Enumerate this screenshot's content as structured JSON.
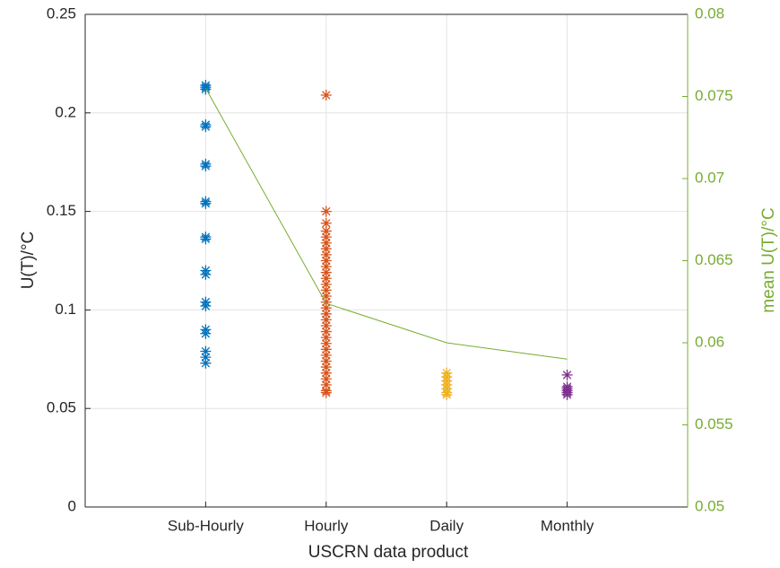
{
  "chart_data": {
    "type": "scatter",
    "xlabel": "USCRN data product",
    "ylabel": "U(T)/°C",
    "y2label": "mean U(T)/°C",
    "xlim": [
      0,
      5
    ],
    "xticks": [
      {
        "value": 1,
        "label": "Sub-Hourly"
      },
      {
        "value": 2,
        "label": "Hourly"
      },
      {
        "value": 3,
        "label": "Daily"
      },
      {
        "value": 4,
        "label": "Monthly"
      }
    ],
    "ylim": [
      0,
      0.25
    ],
    "yticks": [
      0,
      0.05,
      0.1,
      0.15,
      0.2,
      0.25
    ],
    "y2lim": [
      0.05,
      0.08
    ],
    "y2ticks": [
      0.05,
      0.055,
      0.06,
      0.065,
      0.07,
      0.075,
      0.08
    ],
    "y2color": "#77ac30",
    "grid": true,
    "series": [
      {
        "marker": "*",
        "color": "#0072bd",
        "x": [
          1,
          1,
          1,
          1,
          1,
          1,
          1,
          1,
          1,
          1,
          1,
          1,
          1,
          1,
          1,
          1,
          1,
          1,
          1,
          1
        ],
        "y": [
          0.213,
          0.212,
          0.214,
          0.193,
          0.194,
          0.174,
          0.173,
          0.155,
          0.154,
          0.136,
          0.137,
          0.12,
          0.118,
          0.104,
          0.102,
          0.09,
          0.088,
          0.079,
          0.076,
          0.073
        ]
      },
      {
        "marker": "*",
        "color": "#d95319",
        "x": [
          2,
          2,
          2,
          2,
          2,
          2,
          2,
          2,
          2,
          2,
          2,
          2,
          2,
          2,
          2,
          2,
          2,
          2,
          2,
          2,
          2,
          2,
          2,
          2,
          2,
          2,
          2,
          2,
          2,
          2,
          2,
          2
        ],
        "y": [
          0.209,
          0.15,
          0.144,
          0.14,
          0.137,
          0.134,
          0.131,
          0.128,
          0.125,
          0.122,
          0.119,
          0.116,
          0.113,
          0.11,
          0.107,
          0.104,
          0.101,
          0.098,
          0.095,
          0.092,
          0.089,
          0.086,
          0.083,
          0.08,
          0.077,
          0.074,
          0.071,
          0.068,
          0.065,
          0.062,
          0.059,
          0.058
        ]
      },
      {
        "marker": "*",
        "color": "#edb120",
        "x": [
          3,
          3,
          3,
          3,
          3,
          3,
          3
        ],
        "y": [
          0.068,
          0.066,
          0.064,
          0.062,
          0.06,
          0.058,
          0.057
        ]
      },
      {
        "marker": "*",
        "color": "#7e2f8e",
        "x": [
          4,
          4,
          4,
          4,
          4,
          4
        ],
        "y": [
          0.067,
          0.061,
          0.06,
          0.059,
          0.058,
          0.057
        ]
      },
      {
        "marker": "line",
        "axis": "y2",
        "color": "#77ac30",
        "x": [
          1,
          2,
          3,
          4
        ],
        "y": [
          0.0755,
          0.0624,
          0.06,
          0.059
        ]
      }
    ]
  }
}
